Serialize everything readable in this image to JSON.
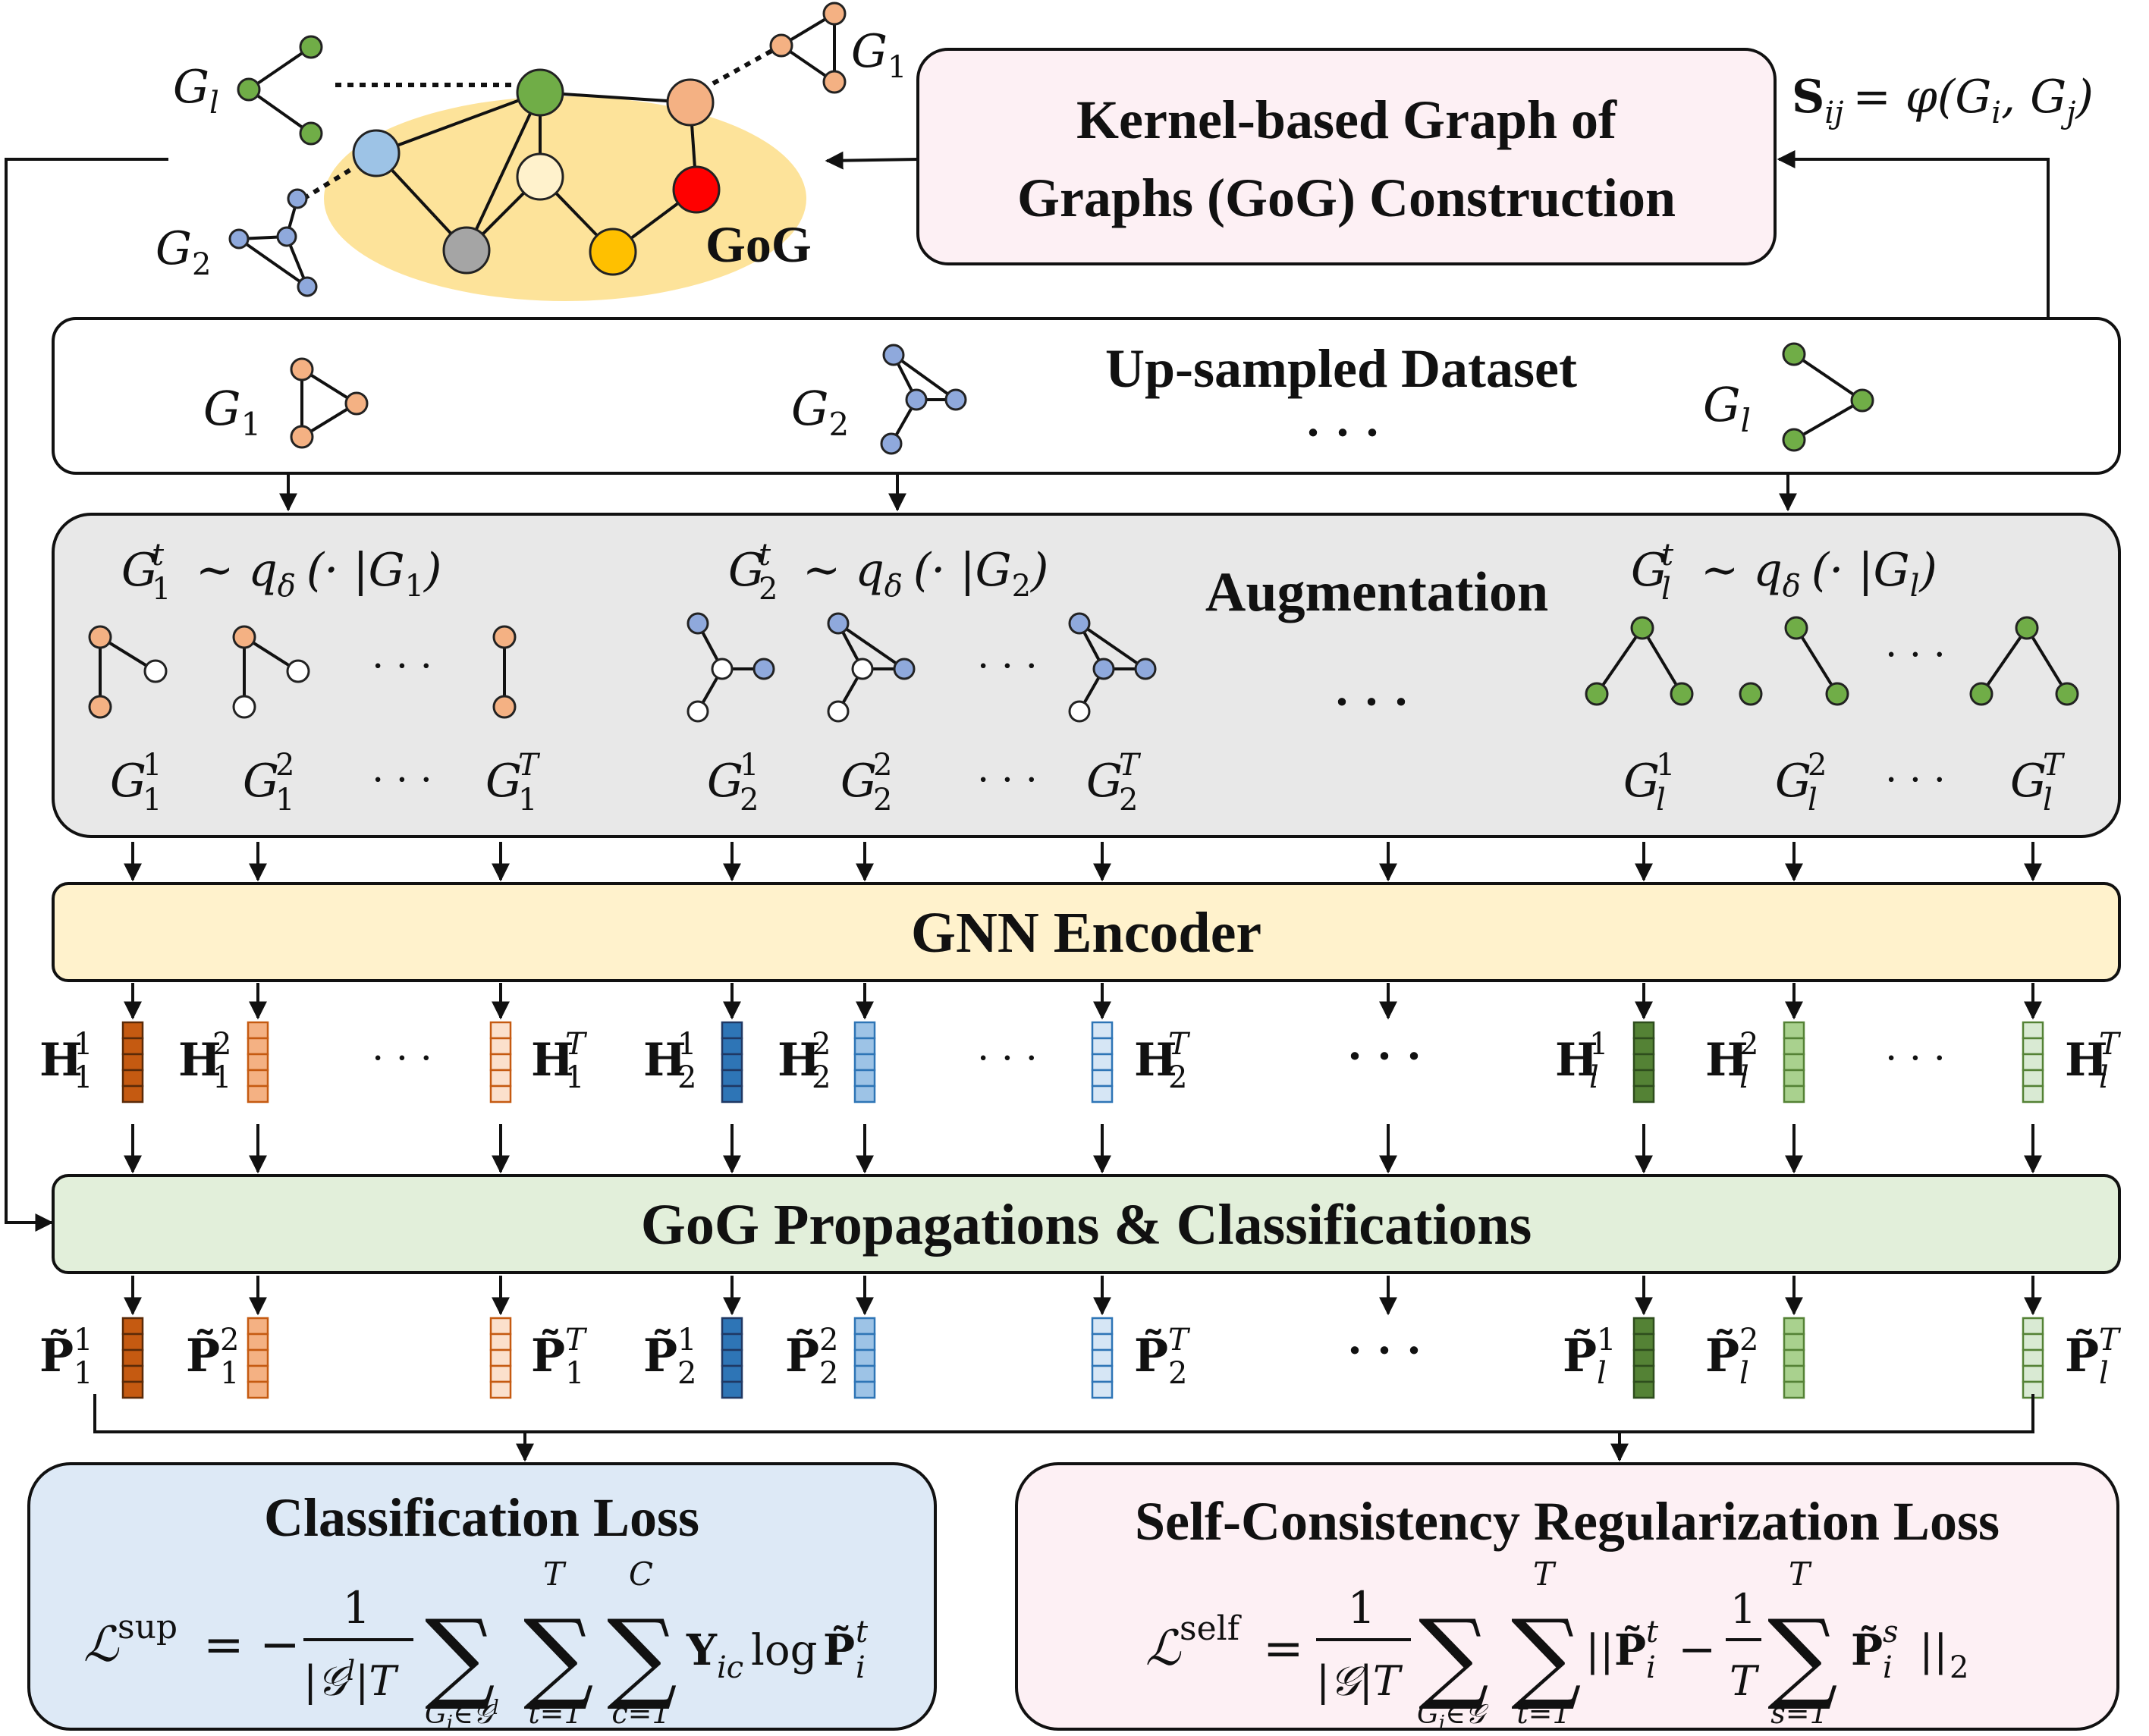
{
  "colors": {
    "orange": "#f4b183",
    "blue": "#8fa9dc",
    "green": "#70ad47",
    "gogEllipse": "#fde39a",
    "gogNodeGreen": "#70ad47",
    "gogNodeBlue": "#9dc3e6",
    "gogNodeLight": "#fff2cc",
    "gogNodeGray": "#a5a5a5",
    "gogNodeGold": "#ffc000",
    "gogNodeRed": "#ff0000",
    "gogNodePeach": "#f4b183",
    "kernelBox": "#fdf0f4",
    "augmentBox": "#e8e8e8",
    "encoderBox": "#fff2cc",
    "propBox": "#e2efda",
    "supLossBox": "#dde9f6",
    "selfLossBox": "#fdf0f4"
  },
  "top": {
    "gl": "G",
    "gl_sub": "l",
    "g1": "G",
    "g1_sub": "1",
    "g2": "G",
    "g2_sub": "2",
    "gog_label": "GoG",
    "kernel_line1": "Kernel-based Graph of",
    "kernel_line2": "Graphs (GoG) Construction",
    "sim_formula": "S",
    "sim_sub": "ij",
    "sim_rhs": "= φ(G",
    "sim_rhs_i": "i",
    "sim_rhs_mid": ", G",
    "sim_rhs_j": "j",
    "sim_rhs_end": ")"
  },
  "upsampled": {
    "title": "Up-sampled Dataset",
    "g1": "G",
    "g1_sub": "1",
    "g2": "G",
    "g2_sub": "2",
    "gl": "G",
    "gl_sub": "l",
    "ellipsis": "· · ·"
  },
  "augmentation": {
    "title": "Augmentation",
    "dist1": "∼ q",
    "dist1_arg": "(· |G",
    "delta": "δ",
    "g": "G",
    "t": "t",
    "sub1": "1",
    "sub2": "2",
    "subl": "l",
    "close": ")",
    "sup1": "1",
    "sup2": "2",
    "supT": "T",
    "dots": "· · ·",
    "mid_dots": "· · ·"
  },
  "encoder": {
    "title": "GNN Encoder"
  },
  "embeddings": {
    "H": "H",
    "sub1": "1",
    "sub2": "2",
    "subl": "l",
    "sup1": "1",
    "sup2": "2",
    "supT": "T",
    "dots": "· · ·",
    "mid_dots": "· · ·"
  },
  "propagation": {
    "title": "GoG Propagations & Classifications"
  },
  "predictions": {
    "P": "P̃",
    "sub1": "1",
    "sub2": "2",
    "subl": "l",
    "sup1": "1",
    "sup2": "2",
    "supT": "T",
    "mid_dots": "· · ·"
  },
  "classification_loss": {
    "title": "Classification Loss",
    "lhs": "ℒ",
    "lhs_sup": "sup",
    "eq": "= −",
    "num": "1",
    "den": "|𝒢",
    "den_sup": "l",
    "den_end": "|T",
    "sum": "∑",
    "sum1_under": "G",
    "sum1_under_i": "i",
    "sum1_under_in": "∈𝒢",
    "sum1_under_l": "l",
    "sum2_over": "T",
    "sum2_under": "t=1",
    "sum3_over": "C",
    "sum3_under": "c=1",
    "Y": "Y",
    "Y_sub": "ic",
    "log": "log",
    "P": "P̃",
    "P_sub": "i",
    "P_sup": "t"
  },
  "self_loss": {
    "title": "Self-Consistency Regularization Loss",
    "lhs": "ℒ",
    "lhs_sup": "self",
    "eq": "=",
    "num": "1",
    "den": "|𝒢|T",
    "sum": "∑",
    "sum1_under": "G",
    "sum1_under_i": "i",
    "sum1_under_in": "∈𝒢",
    "sum2_over": "T",
    "sum2_under": "t=1",
    "norm_open": "||",
    "P": "P̃",
    "P_sub": "i",
    "P_sup": "t",
    "minus": "−",
    "num2": "1",
    "den2": "T",
    "sum3_over": "T",
    "sum3_under": "s=1",
    "P2_sup": "s",
    "norm_close": "||",
    "norm_sub": "2"
  }
}
